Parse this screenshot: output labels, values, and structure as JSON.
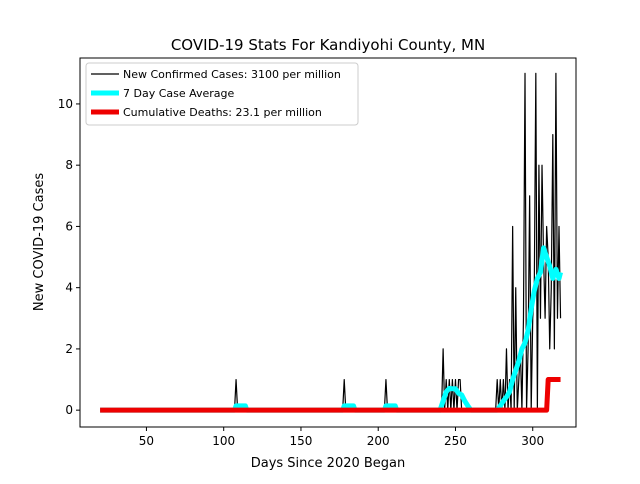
{
  "chart_data": {
    "type": "line",
    "title": "COVID-19 Stats For Kandiyohi County, MN",
    "xlabel": "Days Since 2020 Began",
    "ylabel": "New COVID-19 Cases",
    "xlim": [
      7,
      328
    ],
    "ylim": [
      -0.55,
      11.5
    ],
    "xticks": [
      50,
      100,
      150,
      200,
      250,
      300
    ],
    "yticks": [
      0,
      2,
      4,
      6,
      8,
      10
    ],
    "grid": false,
    "legend_position": "top-left",
    "series": [
      {
        "name": "New Confirmed Cases: 3100 per million",
        "color": "#000000",
        "points": [
          [
            20,
            0
          ],
          [
            106,
            0
          ],
          [
            107,
            0
          ],
          [
            108,
            1
          ],
          [
            109,
            0
          ],
          [
            176,
            0
          ],
          [
            177,
            0
          ],
          [
            178,
            1
          ],
          [
            179,
            0
          ],
          [
            203,
            0
          ],
          [
            204,
            0
          ],
          [
            205,
            1
          ],
          [
            206,
            0
          ],
          [
            240,
            0
          ],
          [
            241,
            0
          ],
          [
            242,
            2
          ],
          [
            243,
            0
          ],
          [
            244,
            1
          ],
          [
            245,
            0
          ],
          [
            246,
            1
          ],
          [
            247,
            0
          ],
          [
            248,
            1
          ],
          [
            249,
            0
          ],
          [
            250,
            1
          ],
          [
            251,
            0
          ],
          [
            252,
            1
          ],
          [
            253,
            1
          ],
          [
            254,
            0
          ],
          [
            276,
            0
          ],
          [
            277,
            1
          ],
          [
            278,
            0
          ],
          [
            279,
            1
          ],
          [
            280,
            0
          ],
          [
            281,
            1
          ],
          [
            282,
            0
          ],
          [
            283,
            2
          ],
          [
            284,
            0
          ],
          [
            285,
            1
          ],
          [
            286,
            0
          ],
          [
            287,
            6
          ],
          [
            288,
            0
          ],
          [
            289,
            4
          ],
          [
            290,
            0
          ],
          [
            291,
            1
          ],
          [
            292,
            2
          ],
          [
            293,
            0
          ],
          [
            294,
            3
          ],
          [
            295,
            11
          ],
          [
            296,
            0
          ],
          [
            297,
            2
          ],
          [
            298,
            7
          ],
          [
            299,
            0
          ],
          [
            300,
            3
          ],
          [
            301,
            4
          ],
          [
            302,
            11
          ],
          [
            303,
            0
          ],
          [
            304,
            8
          ],
          [
            305,
            3
          ],
          [
            306,
            8
          ],
          [
            307,
            5
          ],
          [
            308,
            3
          ],
          [
            309,
            6
          ],
          [
            310,
            5
          ],
          [
            311,
            2
          ],
          [
            312,
            4
          ],
          [
            313,
            9
          ],
          [
            314,
            2
          ],
          [
            315,
            11
          ],
          [
            316,
            3
          ],
          [
            317,
            6
          ],
          [
            318,
            3
          ]
        ]
      },
      {
        "name": "7 Day Case Average",
        "color": "#00ffff",
        "points": [
          [
            20,
            0
          ],
          [
            107,
            0
          ],
          [
            108,
            0.14
          ],
          [
            114,
            0.14
          ],
          [
            115,
            0
          ],
          [
            177,
            0
          ],
          [
            178,
            0.14
          ],
          [
            184,
            0.14
          ],
          [
            185,
            0
          ],
          [
            204,
            0
          ],
          [
            205,
            0.14
          ],
          [
            211,
            0.14
          ],
          [
            212,
            0
          ],
          [
            240,
            0
          ],
          [
            242,
            0.3
          ],
          [
            244,
            0.6
          ],
          [
            246,
            0.71
          ],
          [
            248,
            0.7
          ],
          [
            250,
            0.7
          ],
          [
            252,
            0.55
          ],
          [
            254,
            0.5
          ],
          [
            256,
            0.3
          ],
          [
            258,
            0.14
          ],
          [
            260,
            0
          ],
          [
            277,
            0
          ],
          [
            279,
            0.14
          ],
          [
            281,
            0.3
          ],
          [
            283,
            0.43
          ],
          [
            285,
            0.6
          ],
          [
            287,
            1.0
          ],
          [
            289,
            1.3
          ],
          [
            291,
            1.6
          ],
          [
            293,
            2.0
          ],
          [
            295,
            2.2
          ],
          [
            297,
            2.6
          ],
          [
            299,
            3.3
          ],
          [
            301,
            3.9
          ],
          [
            303,
            4.3
          ],
          [
            305,
            4.5
          ],
          [
            307,
            5.3
          ],
          [
            309,
            5.0
          ],
          [
            311,
            4.7
          ],
          [
            313,
            4.3
          ],
          [
            315,
            4.6
          ],
          [
            317,
            4.3
          ],
          [
            318,
            4.5
          ]
        ]
      },
      {
        "name": "Cumulative Deaths: 23.1 per million",
        "color": "#ee0000",
        "points": [
          [
            20,
            0
          ],
          [
            309,
            0
          ],
          [
            310,
            1
          ],
          [
            318,
            1
          ]
        ]
      }
    ]
  }
}
